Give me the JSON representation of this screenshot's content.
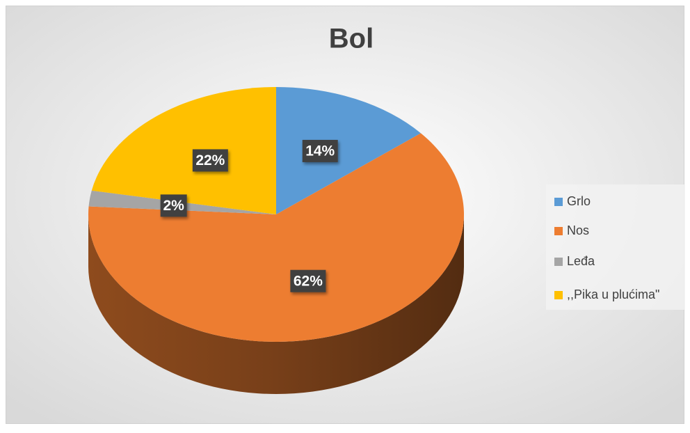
{
  "chart_data": {
    "type": "pie",
    "title": "Bol",
    "categories": [
      "Grlo",
      "Nos",
      "Leđa",
      ",,Pika u plućima\""
    ],
    "values": [
      14,
      62,
      2,
      22
    ],
    "value_labels": [
      "14%",
      "62%",
      "2%",
      "22%"
    ],
    "colors": [
      "#5b9bd5",
      "#ed7d31",
      "#a5a5a5",
      "#ffc000"
    ],
    "legend": "right"
  }
}
